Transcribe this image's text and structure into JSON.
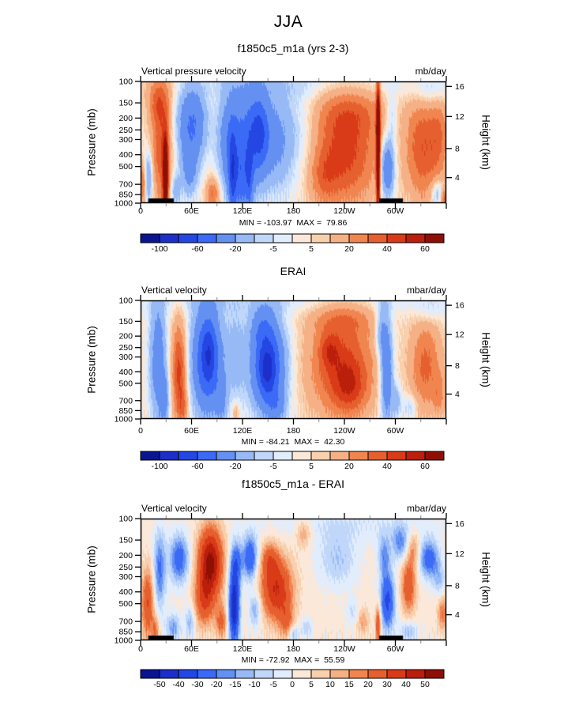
{
  "page": {
    "background": "#ffffff"
  },
  "chart_data": {
    "type": "heatmap",
    "title": "JJA",
    "x_axis": {
      "range_deg": [
        0,
        360
      ],
      "major_tick_deg": 60,
      "minor_tick_deg": 30,
      "tick_labels": [
        {
          "deg": 0,
          "text": "0"
        },
        {
          "deg": 60,
          "text": "60E"
        },
        {
          "deg": 120,
          "text": "120E"
        },
        {
          "deg": 180,
          "text": "180"
        },
        {
          "deg": 240,
          "text": "120W"
        },
        {
          "deg": 300,
          "text": "60W"
        }
      ]
    },
    "palette": [
      "#0a1691",
      "#1c2fc8",
      "#2446e2",
      "#3b6af7",
      "#6490f2",
      "#97baf6",
      "#c0d7fa",
      "#e1ecfc",
      "#fbe8d8",
      "#f8d0ae",
      "#f5b086",
      "#f08550",
      "#e65f2e",
      "#d93a17",
      "#ba1f0c",
      "#8e1005"
    ],
    "panels": [
      {
        "subtitle": "f1850c5_m1a (yrs 2-3)",
        "field_label": "Vertical pressure velocity",
        "units": "mb/day",
        "min": -103.97,
        "max": 79.86,
        "minmax_label": "MIN = -103.97  MAX =  79.86",
        "pressure_axis": {
          "label": "Pressure (mb)",
          "scale": "log",
          "range": [
            100,
            1000
          ],
          "ticks": [
            100,
            150,
            200,
            250,
            300,
            400,
            500,
            700,
            850,
            1000
          ]
        },
        "height_axis": {
          "label": "Height (km)",
          "ticks": [
            16,
            12,
            8,
            4
          ]
        },
        "colorbar": {
          "levels": [
            -100,
            -80,
            -60,
            -40,
            -20,
            -10,
            -5,
            0,
            5,
            10,
            20,
            30,
            40,
            50,
            60
          ],
          "label_indices": [
            0,
            2,
            4,
            6,
            8,
            10,
            12,
            14
          ],
          "labels": [
            "-100",
            "-60",
            "-20",
            "-5",
            "5",
            "20",
            "40",
            "60"
          ]
        },
        "topo_bars_deg": [
          [
            9,
            39
          ],
          [
            281,
            309
          ]
        ],
        "field": {
          "base": 3,
          "blobs": [
            [
              -7,
              200,
              0.02,
              150,
              0.09
            ],
            [
              8,
              20,
              0.04,
              25,
              0.08
            ],
            [
              30,
              2,
              0.85,
              3,
              0.12
            ],
            [
              -30,
              9,
              0.8,
              3.5,
              0.15
            ],
            [
              35,
              24,
              0.55,
              8,
              0.35
            ],
            [
              70,
              29,
              0.8,
              2.2,
              0.25
            ],
            [
              20,
              20,
              0.18,
              9,
              0.12
            ],
            [
              -20,
              41,
              0.9,
              4,
              0.1
            ],
            [
              -45,
              60,
              0.35,
              12,
              0.22
            ],
            [
              -25,
              57,
              0.75,
              7,
              0.15
            ],
            [
              28,
              85,
              0.93,
              6,
              0.1
            ],
            [
              -35,
              105,
              0.5,
              10,
              0.3
            ],
            [
              -50,
              133,
              0.45,
              16,
              0.3
            ],
            [
              -30,
              140,
              0.42,
              7,
              0.18
            ],
            [
              -35,
              118,
              0.85,
              8,
              0.2
            ],
            [
              -40,
              108,
              0.78,
              3,
              0.25
            ],
            [
              -28,
              128,
              0.8,
              3,
              0.2
            ],
            [
              -18,
              165,
              0.5,
              12,
              0.3
            ],
            [
              -12,
              190,
              0.45,
              15,
              0.3
            ],
            [
              40,
              240,
              0.6,
              28,
              0.3
            ],
            [
              18,
              250,
              0.25,
              30,
              0.15
            ],
            [
              15,
              215,
              0.8,
              12,
              0.15
            ],
            [
              85,
              280,
              0.55,
              1.7,
              0.42
            ],
            [
              -45,
              291,
              0.72,
              6,
              0.17
            ],
            [
              -15,
              296,
              0.3,
              5,
              0.15
            ],
            [
              35,
              332,
              0.55,
              14,
              0.3
            ],
            [
              20,
              352,
              0.45,
              8,
              0.25
            ],
            [
              -22,
              350,
              0.92,
              5,
              0.08
            ],
            [
              -12,
              342,
              0.08,
              14,
              0.1
            ],
            [
              30,
              358,
              0.97,
              3,
              0.06
            ]
          ]
        }
      },
      {
        "subtitle": "ERAI",
        "field_label": "Vertical velocity",
        "units": "mbar/day",
        "min": -84.21,
        "max": 42.3,
        "minmax_label": "MIN = -84.21  MAX =  42.30",
        "pressure_axis": {
          "label": "Pressure (mb)",
          "scale": "log",
          "range": [
            100,
            1000
          ],
          "ticks": [
            100,
            150,
            200,
            250,
            300,
            400,
            500,
            700,
            850,
            1000
          ]
        },
        "height_axis": {
          "label": "Height (km)",
          "ticks": [
            16,
            12,
            8,
            4
          ]
        },
        "colorbar": {
          "levels": [
            -100,
            -80,
            -60,
            -40,
            -20,
            -10,
            -5,
            0,
            5,
            10,
            20,
            30,
            40,
            50,
            60
          ],
          "label_indices": [
            0,
            2,
            4,
            6,
            8,
            10,
            12,
            14
          ],
          "labels": [
            "-100",
            "-60",
            "-20",
            "-5",
            "5",
            "20",
            "40",
            "60"
          ]
        },
        "topo_bars_deg": [],
        "field": {
          "base": 3,
          "blobs": [
            [
              -7,
              180,
              0.0,
              190,
              0.08
            ],
            [
              -35,
              20,
              0.5,
              7,
              0.38
            ],
            [
              -25,
              28,
              0.85,
              4,
              0.15
            ],
            [
              42,
              45,
              0.6,
              6,
              0.3
            ],
            [
              18,
              50,
              0.9,
              4,
              0.1
            ],
            [
              -60,
              78,
              0.5,
              13,
              0.33
            ],
            [
              -28,
              80,
              0.45,
              6,
              0.18
            ],
            [
              -20,
              95,
              0.85,
              5,
              0.15
            ],
            [
              15,
              112,
              0.95,
              3,
              0.06
            ],
            [
              -15,
              112,
              0.45,
              8,
              0.3
            ],
            [
              -60,
              150,
              0.55,
              15,
              0.28
            ],
            [
              -38,
              149,
              0.58,
              7,
              0.15
            ],
            [
              -22,
              143,
              0.22,
              10,
              0.12
            ],
            [
              -20,
              160,
              0.9,
              8,
              0.1
            ],
            [
              40,
              237,
              0.55,
              27,
              0.3
            ],
            [
              15,
              240,
              0.15,
              28,
              0.1
            ],
            [
              18,
              222,
              0.42,
              8,
              0.1
            ],
            [
              20,
              247,
              0.75,
              14,
              0.15
            ],
            [
              -42,
              290,
              0.6,
              5.5,
              0.33
            ],
            [
              -20,
              283,
              0.25,
              5,
              0.15
            ],
            [
              -18,
              302,
              0.85,
              4,
              0.1
            ],
            [
              30,
              336,
              0.55,
              13,
              0.28
            ],
            [
              16,
              352,
              0.8,
              5,
              0.12
            ],
            [
              -14,
              318,
              0.9,
              6,
              0.08
            ],
            [
              -10,
              340,
              0.08,
              12,
              0.08
            ]
          ]
        }
      },
      {
        "subtitle": "f1850c5_m1a - ERAI",
        "field_label": "Vertical velocity",
        "units": "mbar/day",
        "min": -72.92,
        "max": 55.59,
        "minmax_label": "MIN = -72.92  MAX =  55.59",
        "pressure_axis": {
          "label": "Pressure (mb)",
          "scale": "log",
          "range": [
            100,
            1000
          ],
          "ticks": [
            100,
            150,
            200,
            250,
            300,
            400,
            500,
            700,
            850,
            1000
          ]
        },
        "height_axis": {
          "label": "Height (km)",
          "ticks": [
            16,
            12,
            8,
            4
          ]
        },
        "colorbar": {
          "levels": [
            -50,
            -40,
            -30,
            -20,
            -15,
            -10,
            -5,
            0,
            5,
            10,
            15,
            20,
            30,
            40,
            50
          ],
          "label_indices": [
            0,
            1,
            2,
            3,
            4,
            5,
            6,
            7,
            8,
            9,
            10,
            11,
            12,
            13,
            14
          ],
          "labels": [
            "-50",
            "-40",
            "-30",
            "-20",
            "-15",
            "-10",
            "-5",
            "0",
            "5",
            "10",
            "15",
            "20",
            "30",
            "40",
            "50"
          ]
        },
        "topo_bars_deg": [
          [
            9,
            39
          ],
          [
            281,
            309
          ]
        ],
        "field": {
          "base": 2,
          "blobs": [
            [
              -6,
              250,
              0.05,
              80,
              0.1
            ],
            [
              28,
              8,
              0.7,
              5,
              0.2
            ],
            [
              18,
              17,
              0.92,
              3,
              0.08
            ],
            [
              -24,
              22,
              0.42,
              5,
              0.22
            ],
            [
              -28,
              45,
              0.33,
              8,
              0.14
            ],
            [
              -18,
              38,
              0.9,
              6,
              0.08
            ],
            [
              -15,
              58,
              0.85,
              4,
              0.1
            ],
            [
              52,
              82,
              0.36,
              10,
              0.2
            ],
            [
              24,
              74,
              0.68,
              8,
              0.15
            ],
            [
              20,
              95,
              0.85,
              5,
              0.1
            ],
            [
              -50,
              110,
              0.72,
              4.5,
              0.24
            ],
            [
              -20,
              113,
              0.35,
              5,
              0.12
            ],
            [
              -32,
              129,
              0.32,
              6,
              0.13
            ],
            [
              -18,
              135,
              0.75,
              5,
              0.1
            ],
            [
              38,
              160,
              0.58,
              13,
              0.18
            ],
            [
              18,
              152,
              0.33,
              7,
              0.1
            ],
            [
              16,
              172,
              0.85,
              6,
              0.1
            ],
            [
              -16,
              180,
              0.95,
              4,
              0.05
            ],
            [
              -10,
              195,
              0.9,
              5,
              0.06
            ],
            [
              14,
              192,
              0.12,
              6,
              0.08
            ],
            [
              -12,
              232,
              0.33,
              16,
              0.16
            ],
            [
              -8,
              250,
              0.77,
              5,
              0.08
            ],
            [
              12,
              262,
              0.85,
              5,
              0.08
            ],
            [
              30,
              280,
              0.88,
              2.2,
              0.12
            ],
            [
              -35,
              291,
              0.68,
              6,
              0.17
            ],
            [
              -18,
              287,
              0.3,
              5,
              0.12
            ],
            [
              -20,
              306,
              0.2,
              7,
              0.1
            ],
            [
              26,
              316,
              0.55,
              6,
              0.16
            ],
            [
              14,
              322,
              0.25,
              5,
              0.1
            ],
            [
              -28,
              340,
              0.33,
              8,
              0.11
            ],
            [
              -14,
              316,
              0.93,
              8,
              0.06
            ],
            [
              18,
              356,
              0.78,
              4,
              0.1
            ],
            [
              -12,
              352,
              0.5,
              5,
              0.1
            ]
          ]
        }
      }
    ]
  }
}
